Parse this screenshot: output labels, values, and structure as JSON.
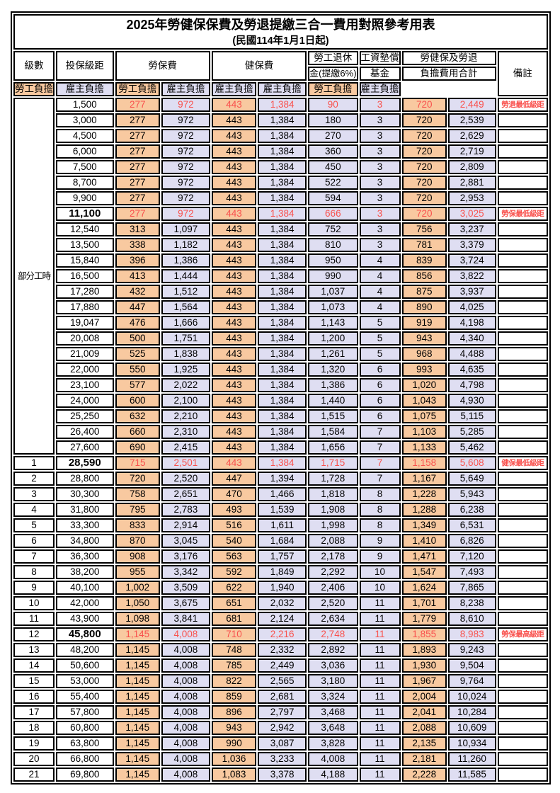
{
  "title": "2025年勞健保保費及勞退提繳三合一費用對照參考用表",
  "subtitle": "(民國114年1月1日起)",
  "colors": {
    "employee_bg": "#F8C9A0",
    "employer_bg": "#DFDEF2",
    "highlight_red": "#F9524E",
    "border": "#000000"
  },
  "header": {
    "level": "級數",
    "bracket": "投保級距",
    "labor_insurance": "勞保費",
    "health_insurance": "健保費",
    "pension_line1": "勞工退休",
    "pension_line2": "金(提繳6%)",
    "wage_fund_line1": "工資墊償",
    "wage_fund_line2": "基金",
    "total_line1": "勞健保及勞退",
    "total_line2": "負擔費用合計",
    "remarks": "備註",
    "employee": "勞工負擔",
    "employer": "雇主負擔"
  },
  "column_pattern": [
    "emp",
    "er",
    "emp",
    "er",
    "er",
    "er",
    "emp",
    "er"
  ],
  "table": {
    "sections": [
      {
        "merged_label": "部分工時",
        "rows": [
          {
            "br": "1,500",
            "v": [
              "277",
              "972",
              "443",
              "1,384",
              "90",
              "3",
              "720",
              "2,449"
            ],
            "nt": "勞退最低級距",
            "hl": true,
            "bb": false
          },
          {
            "br": "3,000",
            "v": [
              "277",
              "972",
              "443",
              "1,384",
              "180",
              "3",
              "720",
              "2,539"
            ],
            "nt": "",
            "hl": false,
            "bb": false
          },
          {
            "br": "4,500",
            "v": [
              "277",
              "972",
              "443",
              "1,384",
              "270",
              "3",
              "720",
              "2,629"
            ],
            "nt": "",
            "hl": false,
            "bb": false
          },
          {
            "br": "6,000",
            "v": [
              "277",
              "972",
              "443",
              "1,384",
              "360",
              "3",
              "720",
              "2,719"
            ],
            "nt": "",
            "hl": false,
            "bb": false
          },
          {
            "br": "7,500",
            "v": [
              "277",
              "972",
              "443",
              "1,384",
              "450",
              "3",
              "720",
              "2,809"
            ],
            "nt": "",
            "hl": false,
            "bb": false
          },
          {
            "br": "8,700",
            "v": [
              "277",
              "972",
              "443",
              "1,384",
              "522",
              "3",
              "720",
              "2,881"
            ],
            "nt": "",
            "hl": false,
            "bb": false
          },
          {
            "br": "9,900",
            "v": [
              "277",
              "972",
              "443",
              "1,384",
              "594",
              "3",
              "720",
              "2,953"
            ],
            "nt": "",
            "hl": false,
            "bb": false
          },
          {
            "br": "11,100",
            "v": [
              "277",
              "972",
              "443",
              "1,384",
              "666",
              "3",
              "720",
              "3,025"
            ],
            "nt": "勞保最低級距",
            "hl": true,
            "bb": true
          },
          {
            "br": "12,540",
            "v": [
              "313",
              "1,097",
              "443",
              "1,384",
              "752",
              "3",
              "756",
              "3,237"
            ],
            "nt": "",
            "hl": false,
            "bb": false
          },
          {
            "br": "13,500",
            "v": [
              "338",
              "1,182",
              "443",
              "1,384",
              "810",
              "3",
              "781",
              "3,379"
            ],
            "nt": "",
            "hl": false,
            "bb": false
          },
          {
            "br": "15,840",
            "v": [
              "396",
              "1,386",
              "443",
              "1,384",
              "950",
              "4",
              "839",
              "3,724"
            ],
            "nt": "",
            "hl": false,
            "bb": false
          },
          {
            "br": "16,500",
            "v": [
              "413",
              "1,444",
              "443",
              "1,384",
              "990",
              "4",
              "856",
              "3,822"
            ],
            "nt": "",
            "hl": false,
            "bb": false
          },
          {
            "br": "17,280",
            "v": [
              "432",
              "1,512",
              "443",
              "1,384",
              "1,037",
              "4",
              "875",
              "3,937"
            ],
            "nt": "",
            "hl": false,
            "bb": false
          },
          {
            "br": "17,880",
            "v": [
              "447",
              "1,564",
              "443",
              "1,384",
              "1,073",
              "4",
              "890",
              "4,025"
            ],
            "nt": "",
            "hl": false,
            "bb": false
          },
          {
            "br": "19,047",
            "v": [
              "476",
              "1,666",
              "443",
              "1,384",
              "1,143",
              "5",
              "919",
              "4,198"
            ],
            "nt": "",
            "hl": false,
            "bb": false
          },
          {
            "br": "20,008",
            "v": [
              "500",
              "1,751",
              "443",
              "1,384",
              "1,200",
              "5",
              "943",
              "4,340"
            ],
            "nt": "",
            "hl": false,
            "bb": false
          },
          {
            "br": "21,009",
            "v": [
              "525",
              "1,838",
              "443",
              "1,384",
              "1,261",
              "5",
              "968",
              "4,488"
            ],
            "nt": "",
            "hl": false,
            "bb": false
          },
          {
            "br": "22,000",
            "v": [
              "550",
              "1,925",
              "443",
              "1,384",
              "1,320",
              "6",
              "993",
              "4,635"
            ],
            "nt": "",
            "hl": false,
            "bb": false
          },
          {
            "br": "23,100",
            "v": [
              "577",
              "2,022",
              "443",
              "1,384",
              "1,386",
              "6",
              "1,020",
              "4,798"
            ],
            "nt": "",
            "hl": false,
            "bb": false
          },
          {
            "br": "24,000",
            "v": [
              "600",
              "2,100",
              "443",
              "1,384",
              "1,440",
              "6",
              "1,043",
              "4,930"
            ],
            "nt": "",
            "hl": false,
            "bb": false
          },
          {
            "br": "25,250",
            "v": [
              "632",
              "2,210",
              "443",
              "1,384",
              "1,515",
              "6",
              "1,075",
              "5,115"
            ],
            "nt": "",
            "hl": false,
            "bb": false
          },
          {
            "br": "26,400",
            "v": [
              "660",
              "2,310",
              "443",
              "1,384",
              "1,584",
              "7",
              "1,103",
              "5,285"
            ],
            "nt": "",
            "hl": false,
            "bb": false
          },
          {
            "br": "27,600",
            "v": [
              "690",
              "2,415",
              "443",
              "1,384",
              "1,656",
              "7",
              "1,133",
              "5,462"
            ],
            "nt": "",
            "hl": false,
            "bb": false
          }
        ]
      },
      {
        "merged_label": null,
        "rows": [
          {
            "lv": "1",
            "br": "28,590",
            "v": [
              "715",
              "2,501",
              "443",
              "1,384",
              "1,715",
              "7",
              "1,158",
              "5,608"
            ],
            "nt": "健保最低級距",
            "hl": true,
            "bb": true
          },
          {
            "lv": "2",
            "br": "28,800",
            "v": [
              "720",
              "2,520",
              "447",
              "1,394",
              "1,728",
              "7",
              "1,167",
              "5,649"
            ],
            "nt": "",
            "hl": false,
            "bb": false
          },
          {
            "lv": "3",
            "br": "30,300",
            "v": [
              "758",
              "2,651",
              "470",
              "1,466",
              "1,818",
              "8",
              "1,228",
              "5,943"
            ],
            "nt": "",
            "hl": false,
            "bb": false
          },
          {
            "lv": "4",
            "br": "31,800",
            "v": [
              "795",
              "2,783",
              "493",
              "1,539",
              "1,908",
              "8",
              "1,288",
              "6,238"
            ],
            "nt": "",
            "hl": false,
            "bb": false
          },
          {
            "lv": "5",
            "br": "33,300",
            "v": [
              "833",
              "2,914",
              "516",
              "1,611",
              "1,998",
              "8",
              "1,349",
              "6,531"
            ],
            "nt": "",
            "hl": false,
            "bb": false
          },
          {
            "lv": "6",
            "br": "34,800",
            "v": [
              "870",
              "3,045",
              "540",
              "1,684",
              "2,088",
              "9",
              "1,410",
              "6,826"
            ],
            "nt": "",
            "hl": false,
            "bb": false
          },
          {
            "lv": "7",
            "br": "36,300",
            "v": [
              "908",
              "3,176",
              "563",
              "1,757",
              "2,178",
              "9",
              "1,471",
              "7,120"
            ],
            "nt": "",
            "hl": false,
            "bb": false
          },
          {
            "lv": "8",
            "br": "38,200",
            "v": [
              "955",
              "3,342",
              "592",
              "1,849",
              "2,292",
              "10",
              "1,547",
              "7,493"
            ],
            "nt": "",
            "hl": false,
            "bb": false
          },
          {
            "lv": "9",
            "br": "40,100",
            "v": [
              "1,002",
              "3,509",
              "622",
              "1,940",
              "2,406",
              "10",
              "1,624",
              "7,865"
            ],
            "nt": "",
            "hl": false,
            "bb": false
          },
          {
            "lv": "10",
            "br": "42,000",
            "v": [
              "1,050",
              "3,675",
              "651",
              "2,032",
              "2,520",
              "11",
              "1,701",
              "8,238"
            ],
            "nt": "",
            "hl": false,
            "bb": false
          },
          {
            "lv": "11",
            "br": "43,900",
            "v": [
              "1,098",
              "3,841",
              "681",
              "2,124",
              "2,634",
              "11",
              "1,779",
              "8,610"
            ],
            "nt": "",
            "hl": false,
            "bb": false
          },
          {
            "lv": "12",
            "br": "45,800",
            "v": [
              "1,145",
              "4,008",
              "710",
              "2,216",
              "2,748",
              "11",
              "1,855",
              "8,983"
            ],
            "nt": "勞保最高級距",
            "hl": true,
            "bb": true
          },
          {
            "lv": "13",
            "br": "48,200",
            "v": [
              "1,145",
              "4,008",
              "748",
              "2,332",
              "2,892",
              "11",
              "1,893",
              "9,243"
            ],
            "nt": "",
            "hl": false,
            "bb": false
          },
          {
            "lv": "14",
            "br": "50,600",
            "v": [
              "1,145",
              "4,008",
              "785",
              "2,449",
              "3,036",
              "11",
              "1,930",
              "9,504"
            ],
            "nt": "",
            "hl": false,
            "bb": false
          },
          {
            "lv": "15",
            "br": "53,000",
            "v": [
              "1,145",
              "4,008",
              "822",
              "2,565",
              "3,180",
              "11",
              "1,967",
              "9,764"
            ],
            "nt": "",
            "hl": false,
            "bb": false
          },
          {
            "lv": "16",
            "br": "55,400",
            "v": [
              "1,145",
              "4,008",
              "859",
              "2,681",
              "3,324",
              "11",
              "2,004",
              "10,024"
            ],
            "nt": "",
            "hl": false,
            "bb": false
          },
          {
            "lv": "17",
            "br": "57,800",
            "v": [
              "1,145",
              "4,008",
              "896",
              "2,797",
              "3,468",
              "11",
              "2,041",
              "10,284"
            ],
            "nt": "",
            "hl": false,
            "bb": false
          },
          {
            "lv": "18",
            "br": "60,800",
            "v": [
              "1,145",
              "4,008",
              "943",
              "2,942",
              "3,648",
              "11",
              "2,088",
              "10,609"
            ],
            "nt": "",
            "hl": false,
            "bb": false
          },
          {
            "lv": "19",
            "br": "63,800",
            "v": [
              "1,145",
              "4,008",
              "990",
              "3,087",
              "3,828",
              "11",
              "2,135",
              "10,934"
            ],
            "nt": "",
            "hl": false,
            "bb": false
          },
          {
            "lv": "20",
            "br": "66,800",
            "v": [
              "1,145",
              "4,008",
              "1,036",
              "3,233",
              "4,008",
              "11",
              "2,181",
              "11,260"
            ],
            "nt": "",
            "hl": false,
            "bb": false
          },
          {
            "lv": "21",
            "br": "69,800",
            "v": [
              "1,145",
              "4,008",
              "1,083",
              "3,378",
              "4,188",
              "11",
              "2,228",
              "11,585"
            ],
            "nt": "",
            "hl": false,
            "bb": false
          }
        ]
      }
    ]
  }
}
